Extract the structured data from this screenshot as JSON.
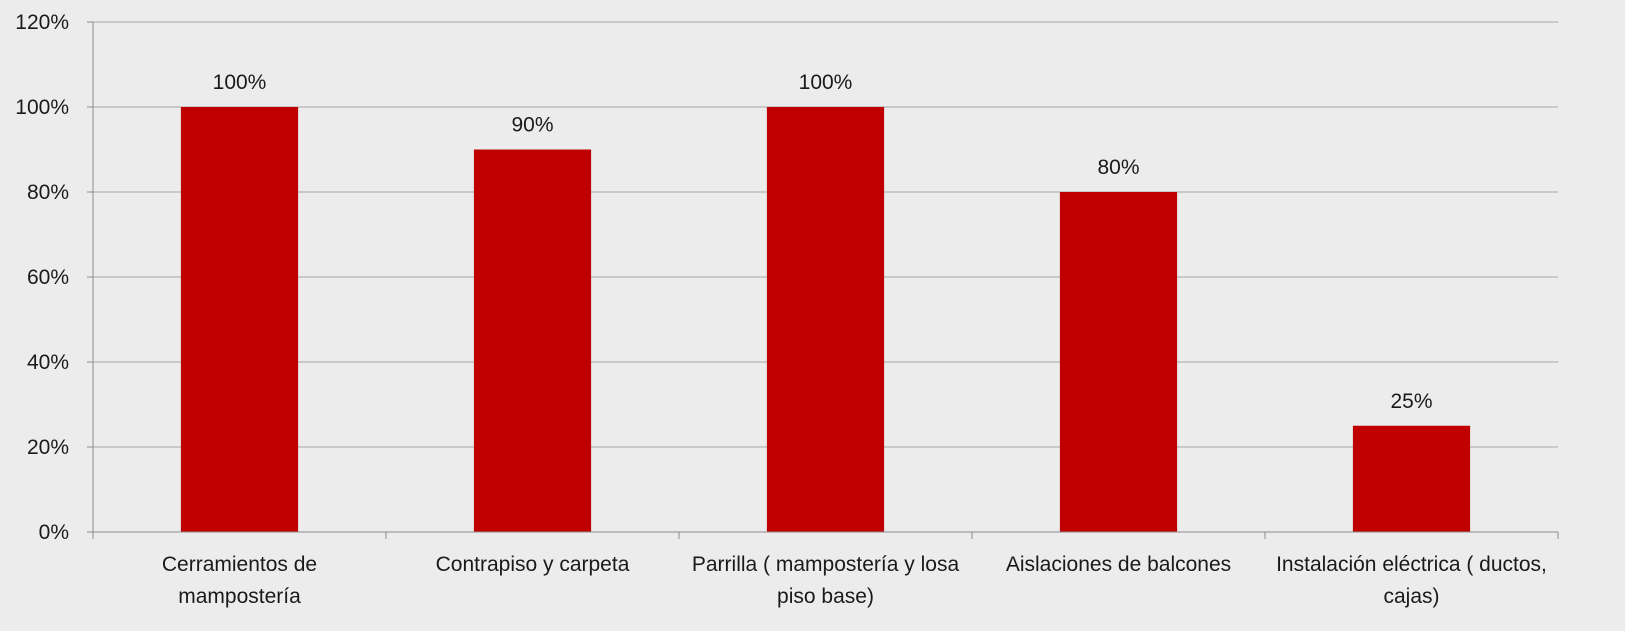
{
  "chart_data": {
    "type": "bar",
    "title": "",
    "xlabel": "",
    "ylabel": "",
    "categories": [
      [
        "Cerramientos de",
        "mampostería"
      ],
      [
        "Contrapiso y carpeta"
      ],
      [
        "Parrilla ( mampostería y losa",
        "piso base)"
      ],
      [
        "Aislaciones de balcones"
      ],
      [
        "Instalación eléctrica ( ductos,",
        "cajas)"
      ]
    ],
    "series": [
      {
        "values": [
          100,
          90,
          100,
          80,
          25
        ],
        "data_labels": [
          "100%",
          "90%",
          "100%",
          "80%",
          "25%"
        ]
      }
    ],
    "ylim": [
      0,
      120
    ],
    "yticks": [
      0,
      20,
      40,
      60,
      80,
      100,
      120
    ],
    "ytick_labels": [
      "0%",
      "20%",
      "40%",
      "60%",
      "80%",
      "100%",
      "120%"
    ],
    "grid": true,
    "legend": "none",
    "colors": {
      "bar": "#c00000",
      "grid": "#a6a6a6",
      "axis": "#8c8c8c",
      "background": "#ececec"
    }
  }
}
